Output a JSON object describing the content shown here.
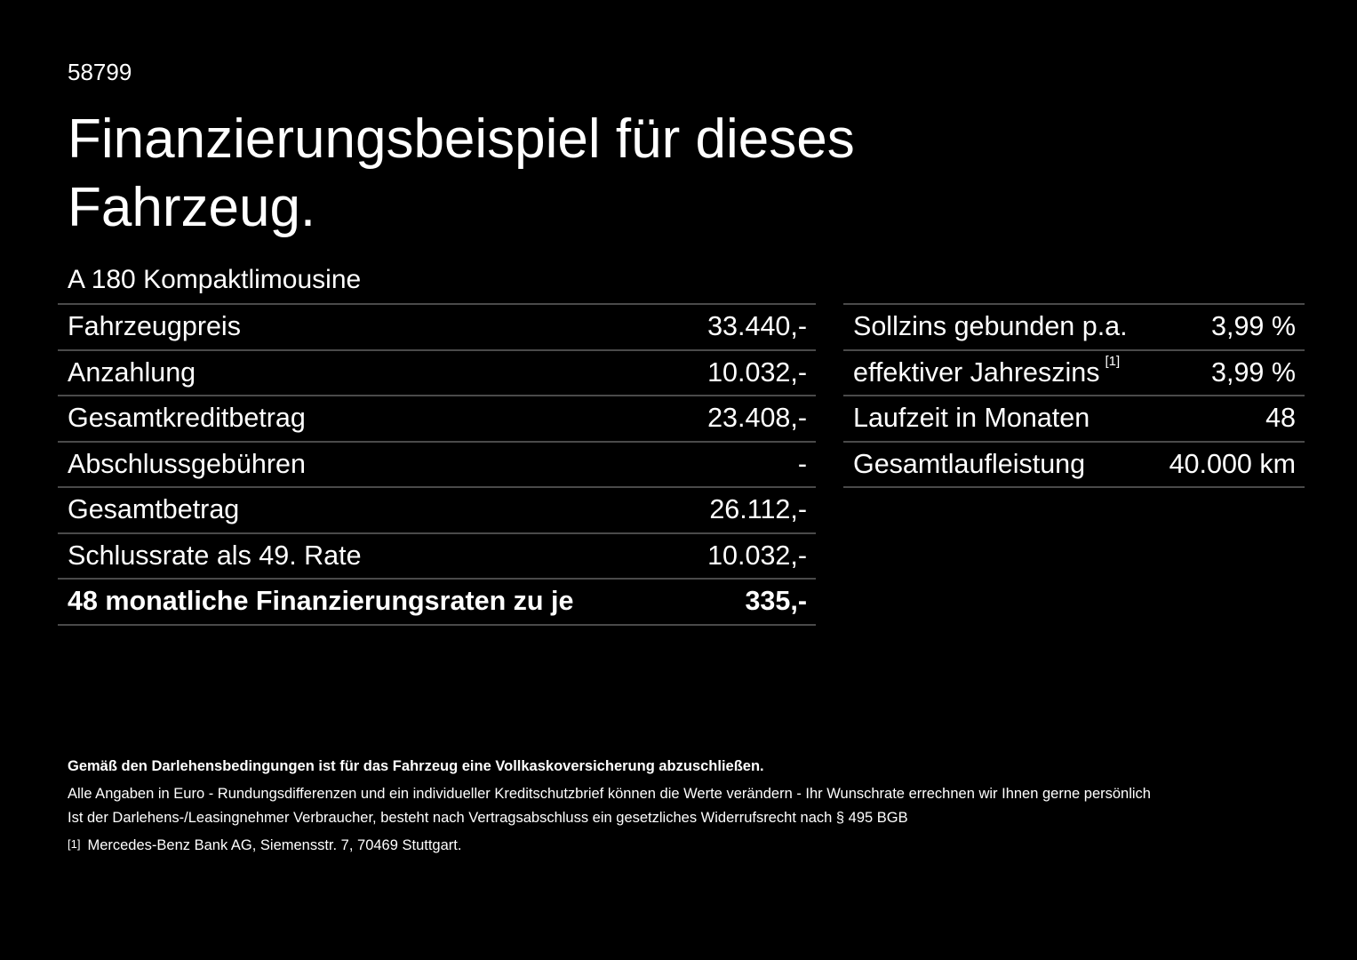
{
  "id": "58799",
  "title": "Finanzierungsbeispiel für dieses Fahrzeug.",
  "model": "A 180 Kompaktlimousine",
  "left_table": [
    {
      "label": "Fahrzeugpreis",
      "value": "33.440,-"
    },
    {
      "label": "Anzahlung",
      "value": "10.032,-"
    },
    {
      "label": "Gesamtkreditbetrag",
      "value": "23.408,-"
    },
    {
      "label": "Abschlussgebühren",
      "value": "-"
    },
    {
      "label": "Gesamtbetrag",
      "value": "26.112,-"
    },
    {
      "label": "Schlussrate als 49. Rate",
      "value": "10.032,-"
    },
    {
      "label": "48 monatliche Finanzierungsraten zu je",
      "value": "335,-"
    }
  ],
  "right_table": [
    {
      "label": "Sollzins gebunden p.a.",
      "value": "3,99 %"
    },
    {
      "label": "effektiver Jahreszins",
      "footnote": "[1]",
      "value": "3,99 %"
    },
    {
      "label": "Laufzeit in Monaten",
      "value": "48"
    },
    {
      "label": "Gesamtlaufleistung",
      "value": "40.000 km"
    }
  ],
  "notes": {
    "insurance": "Gemäß den Darlehensbedingungen ist für das Fahrzeug eine Vollkaskoversicherung abzuschließen.",
    "line1": "Alle Angaben in Euro - Rundungsdifferenzen und ein individueller Kreditschutzbrief können die Werte verändern - Ihr Wunschrate errechnen wir Ihnen gerne persönlich",
    "line2": "Ist der Darlehens-/Leasingnehmer Verbraucher, besteht nach Vertragsabschluss ein gesetzliches Widerrufsrecht nach § 495 BGB",
    "footnote_marker": "[1]",
    "footnote_text": "Mercedes-Benz Bank AG, Siemensstr. 7, 70469 Stuttgart."
  }
}
